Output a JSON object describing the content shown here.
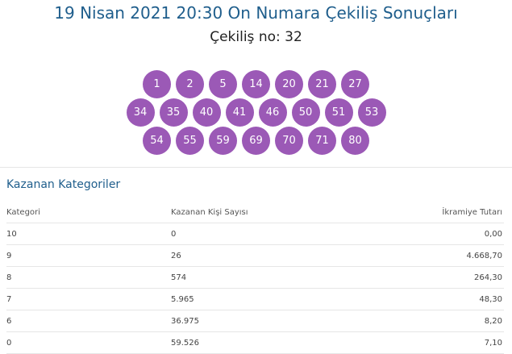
{
  "header": {
    "title": "19 Nisan 2021 20:30 On Numara Çekiliş Sonuçları",
    "draw_number": "Çekiliş no: 32"
  },
  "balls": {
    "row1": [
      "1",
      "2",
      "5",
      "14",
      "20",
      "21",
      "27"
    ],
    "row2": [
      "34",
      "35",
      "40",
      "41",
      "46",
      "50",
      "51",
      "53"
    ],
    "row3": [
      "54",
      "55",
      "59",
      "69",
      "70",
      "71",
      "80"
    ]
  },
  "winners": {
    "heading": "Kazanan Kategoriler",
    "columns": [
      "Kategori",
      "Kazanan Kişi Sayısı",
      "İkramiye Tutarı"
    ],
    "rows": [
      [
        "10",
        "0",
        "0,00"
      ],
      [
        "9",
        "26",
        "4.668,70"
      ],
      [
        "8",
        "574",
        "264,30"
      ],
      [
        "7",
        "5.965",
        "48,30"
      ],
      [
        "6",
        "36.975",
        "8,20"
      ],
      [
        "0",
        "59.526",
        "7,10"
      ]
    ]
  },
  "colors": {
    "ball": "#9b59b6",
    "title": "#1f5e8c"
  }
}
